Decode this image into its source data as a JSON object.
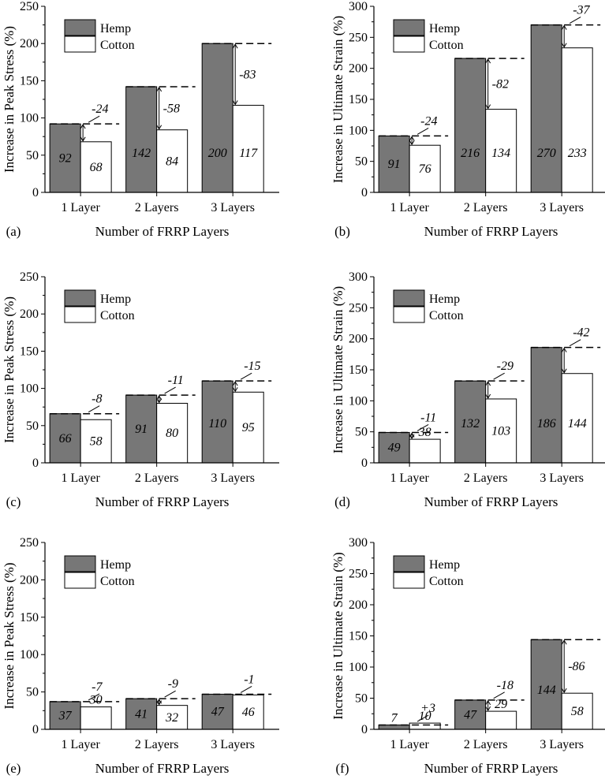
{
  "figure": {
    "legend": {
      "series_a": "Hemp",
      "series_b": "Cotton"
    },
    "colors": {
      "hemp": "#777777",
      "cotton": "#ffffff",
      "axis": "#000000"
    }
  },
  "chart_data": [
    {
      "type": "bar",
      "panel_label": "(a)",
      "categories": [
        "1 Layer",
        "2 Layers",
        "3 Layers"
      ],
      "series": [
        {
          "name": "Hemp",
          "values": [
            92,
            142,
            200
          ]
        },
        {
          "name": "Cotton",
          "values": [
            68,
            84,
            117
          ]
        }
      ],
      "value_labels": [
        [
          "92",
          "142",
          "200"
        ],
        [
          "68",
          "84",
          "117"
        ]
      ],
      "differences": [
        "-24",
        "-58",
        "-83"
      ],
      "xlabel": "Number of FRRP Layers",
      "ylabel": "Increase in Peak Stress (%)",
      "ylim": [
        0,
        250
      ],
      "yticks": [
        "0",
        "50",
        "100",
        "150",
        "200",
        "250"
      ],
      "legend_position": "top-left",
      "grid": false
    },
    {
      "type": "bar",
      "panel_label": "(b)",
      "categories": [
        "1 Layer",
        "2 Layers",
        "3 Layers"
      ],
      "series": [
        {
          "name": "Hemp",
          "values": [
            91,
            216,
            270
          ]
        },
        {
          "name": "Cotton",
          "values": [
            76,
            134,
            233
          ]
        }
      ],
      "value_labels": [
        [
          "91",
          "216",
          "270"
        ],
        [
          "76",
          "134",
          "233"
        ]
      ],
      "differences": [
        "-24",
        "-82",
        "-37"
      ],
      "xlabel": "Number of FRRP Layers",
      "ylabel": "Increase in Ultimate Strain (%)",
      "ylim": [
        0,
        300
      ],
      "yticks": [
        "0",
        "50",
        "100",
        "150",
        "200",
        "250",
        "300"
      ],
      "legend_position": "top-left",
      "grid": false
    },
    {
      "type": "bar",
      "panel_label": "(c)",
      "categories": [
        "1 Layer",
        "2 Layers",
        "3 Layers"
      ],
      "series": [
        {
          "name": "Hemp",
          "values": [
            66,
            91,
            110
          ]
        },
        {
          "name": "Cotton",
          "values": [
            58,
            80,
            95
          ]
        }
      ],
      "value_labels": [
        [
          "66",
          "91",
          "110"
        ],
        [
          "58",
          "80",
          "95"
        ]
      ],
      "differences": [
        "-8",
        "-11",
        "-15"
      ],
      "xlabel": "Number of FRRP Layers",
      "ylabel": "Increase in Peak Stress (%)",
      "ylim": [
        0,
        250
      ],
      "yticks": [
        "0",
        "50",
        "100",
        "150",
        "200",
        "250"
      ],
      "legend_position": "top-left",
      "grid": false
    },
    {
      "type": "bar",
      "panel_label": "(d)",
      "categories": [
        "1 Layer",
        "2 Layers",
        "3 Layers"
      ],
      "series": [
        {
          "name": "Hemp",
          "values": [
            49,
            132,
            186
          ]
        },
        {
          "name": "Cotton",
          "values": [
            38,
            103,
            144
          ]
        }
      ],
      "value_labels": [
        [
          "49",
          "132",
          "186"
        ],
        [
          "38",
          "103",
          "144"
        ]
      ],
      "differences": [
        "-11",
        "-29",
        "-42"
      ],
      "xlabel": "Number of FRRP Layers",
      "ylabel": "Increase in Ultimate Strain (%)",
      "ylim": [
        0,
        300
      ],
      "yticks": [
        "0",
        "50",
        "100",
        "150",
        "200",
        "250",
        "300"
      ],
      "legend_position": "top-left",
      "grid": false
    },
    {
      "type": "bar",
      "panel_label": "(e)",
      "categories": [
        "1 Layer",
        "2 Layers",
        "3 Layers"
      ],
      "series": [
        {
          "name": "Hemp",
          "values": [
            37,
            41,
            47
          ]
        },
        {
          "name": "Cotton",
          "values": [
            30,
            32,
            46
          ]
        }
      ],
      "value_labels": [
        [
          "37",
          "41",
          "47"
        ],
        [
          "30",
          "32",
          "46"
        ]
      ],
      "differences": [
        "-7",
        "-9",
        "-1"
      ],
      "xlabel": "Number of FRRP Layers",
      "ylabel": "Increase in Peak Stress (%)",
      "ylim": [
        0,
        250
      ],
      "yticks": [
        "0",
        "50",
        "100",
        "150",
        "200",
        "250"
      ],
      "legend_position": "top-left",
      "grid": false
    },
    {
      "type": "bar",
      "panel_label": "(f)",
      "categories": [
        "1 Layer",
        "2 Layers",
        "3 Layers"
      ],
      "series": [
        {
          "name": "Hemp",
          "values": [
            7,
            47,
            144
          ]
        },
        {
          "name": "Cotton",
          "values": [
            10,
            29,
            58
          ]
        }
      ],
      "value_labels": [
        [
          "7",
          "47",
          "144"
        ],
        [
          "10",
          "29",
          "58"
        ]
      ],
      "differences": [
        "+3",
        "-18",
        "-86"
      ],
      "xlabel": "Number of FRRP Layers",
      "ylabel": "Increase in Ultimate Strain (%)",
      "ylim": [
        0,
        300
      ],
      "yticks": [
        "0",
        "50",
        "100",
        "150",
        "200",
        "250",
        "300"
      ],
      "legend_position": "top-left",
      "grid": false
    }
  ]
}
